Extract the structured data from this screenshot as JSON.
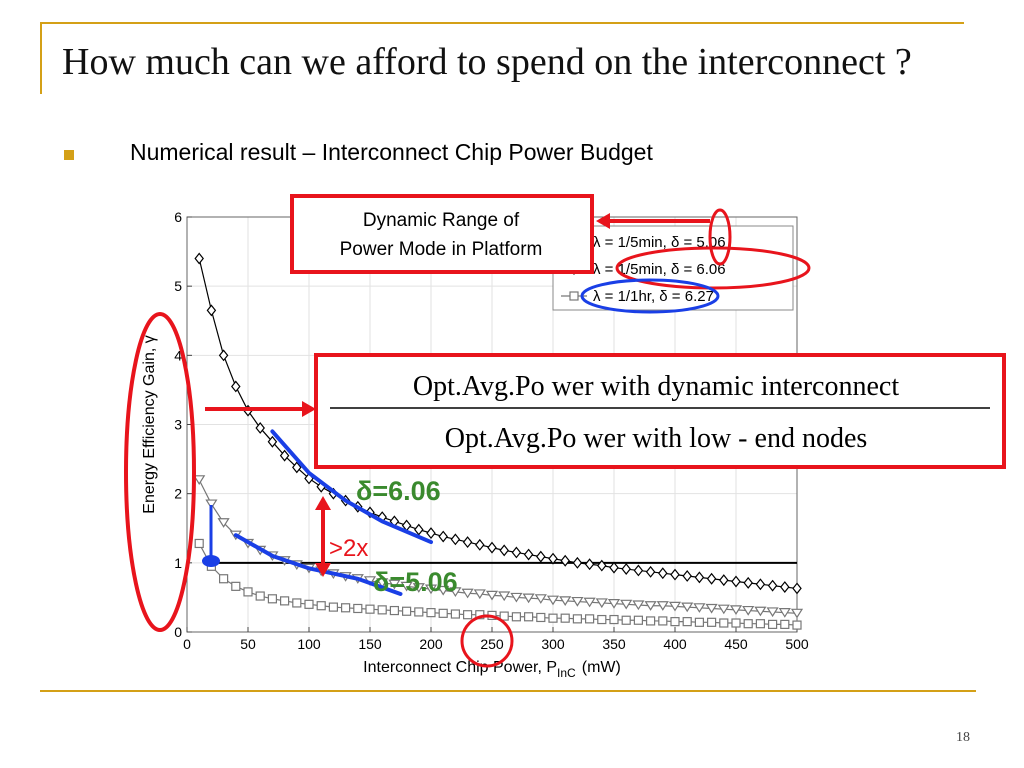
{
  "slide": {
    "title": "How much can we afford to spend on the interconnect ?",
    "bullet": "Numerical result – Interconnect Chip Power Budget",
    "page_number": "18",
    "accent_color": "#d4a017"
  },
  "chart_data": {
    "type": "line",
    "xlabel": "Interconnect Chip Power, P",
    "xlabel_sub": "InC",
    "xlabel_unit": "(mW)",
    "ylabel": "Energy Efficiency Gain, γ",
    "xlim": [
      0,
      500
    ],
    "ylim": [
      0,
      6
    ],
    "xticks": [
      "0",
      "50",
      "100",
      "150",
      "200",
      "250",
      "300",
      "350",
      "400",
      "450",
      "500"
    ],
    "yticks": [
      "0",
      "1",
      "2",
      "3",
      "4",
      "5",
      "6"
    ],
    "grid": true,
    "legend_position": "top-right",
    "reference_line_y": 1,
    "series": [
      {
        "name": "λ = 1/5min,  δ = 5.06",
        "marker": "triangle-down",
        "color": "#777777",
        "x": [
          10,
          20,
          30,
          40,
          50,
          60,
          70,
          80,
          90,
          100,
          110,
          120,
          130,
          140,
          150,
          160,
          170,
          180,
          190,
          200,
          210,
          220,
          230,
          240,
          250,
          260,
          270,
          280,
          290,
          300,
          310,
          320,
          330,
          340,
          350,
          360,
          370,
          380,
          390,
          400,
          410,
          420,
          430,
          440,
          450,
          460,
          470,
          480,
          490,
          500
        ],
        "y": [
          2.2,
          1.85,
          1.58,
          1.4,
          1.28,
          1.18,
          1.1,
          1.03,
          0.97,
          0.92,
          0.88,
          0.84,
          0.8,
          0.77,
          0.74,
          0.71,
          0.69,
          0.66,
          0.64,
          0.62,
          0.6,
          0.58,
          0.56,
          0.55,
          0.53,
          0.52,
          0.5,
          0.49,
          0.48,
          0.46,
          0.45,
          0.44,
          0.43,
          0.42,
          0.41,
          0.4,
          0.39,
          0.38,
          0.38,
          0.37,
          0.36,
          0.35,
          0.34,
          0.33,
          0.32,
          0.31,
          0.3,
          0.29,
          0.28,
          0.27
        ]
      },
      {
        "name": "λ = 1/5min,  δ = 6.06",
        "marker": "diamond",
        "color": "#000000",
        "x": [
          10,
          20,
          30,
          40,
          50,
          60,
          70,
          80,
          90,
          100,
          110,
          120,
          130,
          140,
          150,
          160,
          170,
          180,
          190,
          200,
          210,
          220,
          230,
          240,
          250,
          260,
          270,
          280,
          290,
          300,
          310,
          320,
          330,
          340,
          350,
          360,
          370,
          380,
          390,
          400,
          410,
          420,
          430,
          440,
          450,
          460,
          470,
          480,
          490,
          500
        ],
        "y": [
          5.4,
          4.65,
          4.0,
          3.55,
          3.2,
          2.95,
          2.75,
          2.55,
          2.38,
          2.22,
          2.1,
          2.0,
          1.9,
          1.81,
          1.73,
          1.66,
          1.6,
          1.54,
          1.48,
          1.43,
          1.38,
          1.34,
          1.3,
          1.26,
          1.22,
          1.18,
          1.15,
          1.12,
          1.09,
          1.06,
          1.03,
          1.0,
          0.98,
          0.96,
          0.93,
          0.91,
          0.89,
          0.87,
          0.85,
          0.83,
          0.81,
          0.79,
          0.77,
          0.75,
          0.73,
          0.71,
          0.69,
          0.67,
          0.65,
          0.63
        ]
      },
      {
        "name": "λ = 1/1hr,  δ = 6.27",
        "marker": "square",
        "color": "#777777",
        "x": [
          10,
          20,
          30,
          40,
          50,
          60,
          70,
          80,
          90,
          100,
          110,
          120,
          130,
          140,
          150,
          160,
          170,
          180,
          190,
          200,
          210,
          220,
          230,
          240,
          250,
          260,
          270,
          280,
          290,
          300,
          310,
          320,
          330,
          340,
          350,
          360,
          370,
          380,
          390,
          400,
          410,
          420,
          430,
          440,
          450,
          460,
          470,
          480,
          490,
          500
        ],
        "y": [
          1.28,
          0.95,
          0.77,
          0.66,
          0.58,
          0.52,
          0.48,
          0.45,
          0.42,
          0.4,
          0.38,
          0.36,
          0.35,
          0.34,
          0.33,
          0.32,
          0.31,
          0.3,
          0.29,
          0.28,
          0.27,
          0.26,
          0.25,
          0.25,
          0.24,
          0.23,
          0.22,
          0.22,
          0.21,
          0.2,
          0.2,
          0.19,
          0.19,
          0.18,
          0.18,
          0.17,
          0.17,
          0.16,
          0.16,
          0.15,
          0.15,
          0.14,
          0.14,
          0.13,
          0.13,
          0.12,
          0.12,
          0.11,
          0.11,
          0.1
        ]
      }
    ],
    "highlight_lines": [
      {
        "color": "#1a3fe6",
        "x": [
          70,
          100,
          130,
          160,
          200
        ],
        "y": [
          2.9,
          2.3,
          1.9,
          1.6,
          1.3
        ]
      },
      {
        "color": "#1a3fe6",
        "x": [
          40,
          70,
          100,
          140,
          175
        ],
        "y": [
          1.4,
          1.1,
          0.92,
          0.77,
          0.55
        ]
      }
    ],
    "annotations": {
      "dynamic_range_box": "Dynamic Range of Power Mode in Platform",
      "numerator": "Opt.Avg.Po wer with dynamic interconnect",
      "denominator": "Opt.Avg.Po wer with low - end nodes",
      "delta_high": "δ=6.06",
      "delta_low": "δ=5.06",
      "gain": ">2x",
      "red": "#e8141c",
      "green": "#3a8a2e",
      "blue": "#1a3fe6"
    }
  }
}
